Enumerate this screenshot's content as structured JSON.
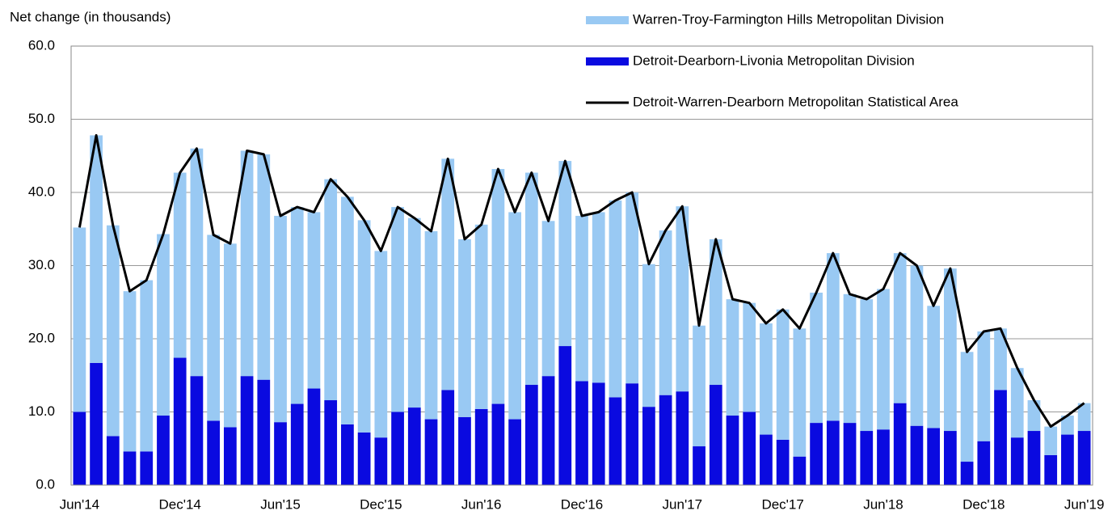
{
  "chart_data": {
    "type": "bar",
    "stacked": true,
    "ylabel": "Net change (in thousands)",
    "categories": [
      "Jun'14",
      null,
      null,
      null,
      null,
      null,
      "Dec'14",
      null,
      null,
      null,
      null,
      null,
      "Jun'15",
      null,
      null,
      null,
      null,
      null,
      "Dec'15",
      null,
      null,
      null,
      null,
      null,
      "Jun'16",
      null,
      null,
      null,
      null,
      null,
      "Dec'16",
      null,
      null,
      null,
      null,
      null,
      "Jun'17",
      null,
      null,
      null,
      null,
      null,
      "Dec'17",
      null,
      null,
      null,
      null,
      null,
      "Jun'18",
      null,
      null,
      null,
      null,
      null,
      "Dec'18",
      null,
      null,
      null,
      null,
      null,
      "Jun'19"
    ],
    "series": [
      {
        "name": "Warren-Troy-Farmington Hills Metropolitan Division",
        "type": "bar",
        "color": "#99c9f3",
        "values": [
          25.2,
          31.1,
          28.8,
          21.9,
          23.4,
          24.8,
          25.3,
          31.1,
          25.4,
          25.1,
          30.8,
          30.8,
          28.2,
          26.9,
          24.1,
          30.2,
          31.1,
          29.0,
          25.5,
          28.0,
          25.9,
          25.7,
          31.6,
          24.3,
          25.2,
          32.1,
          28.3,
          29.0,
          21.2,
          25.3,
          22.6,
          23.3,
          26.9,
          26.1,
          19.5,
          22.5,
          25.3,
          16.5,
          19.9,
          15.9,
          14.9,
          15.2,
          17.8,
          17.5,
          17.8,
          22.9,
          17.6,
          18.0,
          19.2,
          20.5,
          21.9,
          16.7,
          22.2,
          15.0,
          15.0,
          8.4,
          9.5,
          4.2,
          3.9,
          2.6,
          3.8
        ]
      },
      {
        "name": "Detroit-Dearborn-Livonia Metropolitan Division",
        "type": "bar",
        "color": "#0a0ae0",
        "values": [
          10.0,
          16.7,
          6.7,
          4.6,
          4.6,
          9.5,
          17.4,
          14.9,
          8.8,
          7.9,
          14.9,
          14.4,
          8.6,
          11.1,
          13.2,
          11.6,
          8.3,
          7.2,
          6.5,
          10.0,
          10.6,
          9.0,
          13.0,
          9.3,
          10.4,
          11.1,
          9.0,
          13.7,
          14.9,
          19.0,
          14.2,
          14.0,
          12.0,
          13.9,
          10.7,
          12.3,
          12.8,
          5.3,
          13.7,
          9.5,
          10.0,
          6.9,
          6.2,
          3.9,
          8.5,
          8.8,
          8.5,
          7.4,
          7.6,
          11.2,
          8.1,
          7.8,
          7.4,
          3.2,
          6.0,
          13.0,
          6.5,
          7.4,
          4.1,
          6.9,
          7.4
        ]
      },
      {
        "name": "Detroit-Warren-Dearborn Metropolitan Statistical Area",
        "type": "line",
        "color": "#000000",
        "values": [
          35.2,
          47.8,
          35.5,
          26.5,
          28.0,
          34.3,
          42.7,
          46.0,
          34.2,
          33.0,
          45.7,
          45.2,
          36.8,
          38.0,
          37.3,
          41.8,
          39.4,
          36.2,
          32.0,
          38.0,
          36.5,
          34.7,
          44.6,
          33.6,
          35.6,
          43.2,
          37.3,
          42.7,
          36.1,
          44.3,
          36.8,
          37.3,
          38.9,
          40.0,
          30.2,
          34.8,
          38.1,
          21.8,
          33.6,
          25.4,
          24.9,
          22.1,
          24.0,
          21.4,
          26.3,
          31.7,
          26.1,
          25.4,
          26.8,
          31.7,
          30.0,
          24.5,
          29.6,
          18.2,
          21.0,
          21.4,
          16.0,
          11.6,
          8.0,
          9.5,
          11.2
        ]
      }
    ],
    "ylim": [
      0,
      60
    ],
    "yticks": [
      {
        "value": 0,
        "label": "0.0"
      },
      {
        "value": 10,
        "label": "10.0"
      },
      {
        "value": 20,
        "label": "20.0"
      },
      {
        "value": 30,
        "label": "30.0"
      },
      {
        "value": 40,
        "label": "40.0"
      },
      {
        "value": 50,
        "label": "50.0"
      },
      {
        "value": 60,
        "label": "60.0"
      }
    ],
    "grid": true,
    "legend": "upper right"
  }
}
